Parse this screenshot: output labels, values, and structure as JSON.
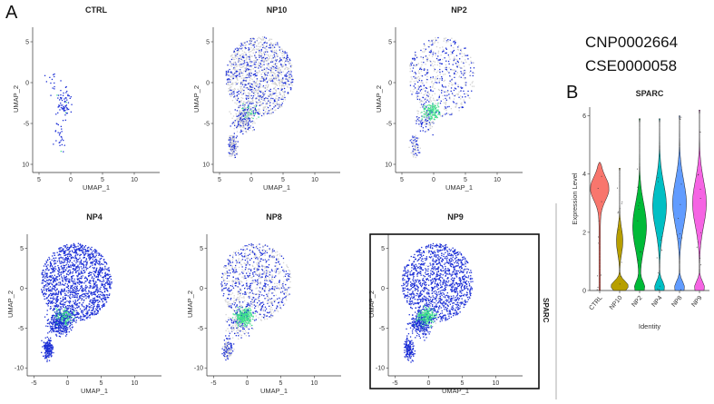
{
  "figure": {
    "panel_a_letter": "A",
    "panel_b_letter": "B",
    "identifier_1": "CNP0002664",
    "identifier_2": "CSE0000058",
    "side_label": "SPARC"
  },
  "colors": {
    "low": "#d3d3d3",
    "mid": "#1c2fd6",
    "high": "#3ee08a",
    "panel_border": "#111111"
  },
  "chart_data": [
    {
      "type": "scatter",
      "title": "CTRL",
      "xlabel": "UMAP_1",
      "ylabel": "UMAP_2",
      "x_ticks": [
        "5",
        "0",
        "5",
        "10"
      ],
      "y_ticks": [
        "5",
        "0",
        "-5",
        "10"
      ],
      "xlim": [
        -6,
        14
      ],
      "ylim": [
        -11,
        7
      ],
      "point_count": 110
    },
    {
      "type": "scatter",
      "title": "NP10",
      "xlabel": "UMAP_1",
      "ylabel": "UMAP_2",
      "x_ticks": [
        "5",
        "0",
        "5",
        "10"
      ],
      "y_ticks": [
        "5",
        "0",
        "-5",
        "10"
      ],
      "xlim": [
        -6,
        14
      ],
      "ylim": [
        -11,
        7
      ],
      "point_count": 1800
    },
    {
      "type": "scatter",
      "title": "NP2",
      "xlabel": "UMAP_1",
      "ylabel": "UMAP_2",
      "x_ticks": [
        "5",
        "0",
        "5",
        "10"
      ],
      "y_ticks": [
        "5",
        "0",
        "-5",
        "10"
      ],
      "xlim": [
        -6,
        14
      ],
      "ylim": [
        -11,
        7
      ],
      "point_count": 900
    },
    {
      "type": "scatter",
      "title": "NP4",
      "xlabel": "UMAP_1",
      "ylabel": "UMAP_2",
      "x_ticks": [
        "-5",
        "0",
        "5",
        "10"
      ],
      "y_ticks": [
        "5",
        "0",
        "-5",
        "-10"
      ],
      "xlim": [
        -6,
        14
      ],
      "ylim": [
        -11,
        7
      ],
      "point_count": 2200
    },
    {
      "type": "scatter",
      "title": "NP8",
      "xlabel": "UMAP_1",
      "ylabel": "UMAP_2",
      "x_ticks": [
        "-5",
        "0",
        "5",
        "10"
      ],
      "y_ticks": [
        "5",
        "0",
        "-5",
        "-10"
      ],
      "xlim": [
        -6,
        14
      ],
      "ylim": [
        -11,
        7
      ],
      "point_count": 1500
    },
    {
      "type": "scatter",
      "title": "NP9",
      "xlabel": "UMAP_1",
      "ylabel": "UMAP_2",
      "x_ticks": [
        "-5",
        "0",
        "5",
        "10"
      ],
      "y_ticks": [
        "5",
        "0",
        "-5",
        "-10"
      ],
      "xlim": [
        -6,
        14
      ],
      "ylim": [
        -11,
        7
      ],
      "point_count": 2000
    },
    {
      "type": "violin",
      "title": "SPARC",
      "xlabel": "Identity",
      "ylabel": "Expression Level",
      "ylim": [
        0,
        6.3
      ],
      "y_ticks": [
        "0",
        "2",
        "4",
        "6"
      ],
      "categories": [
        "CTRL",
        "NP10",
        "NP2",
        "NP4",
        "NP8",
        "NP9"
      ],
      "colors": [
        "#f8766d",
        "#b79f00",
        "#00ba38",
        "#00bfc4",
        "#619cff",
        "#f564e3"
      ],
      "medians": [
        3.4,
        0.2,
        2.2,
        2.9,
        3.0,
        3.0
      ],
      "max_values": [
        4.4,
        4.2,
        5.9,
        5.9,
        6.0,
        6.2
      ]
    }
  ]
}
